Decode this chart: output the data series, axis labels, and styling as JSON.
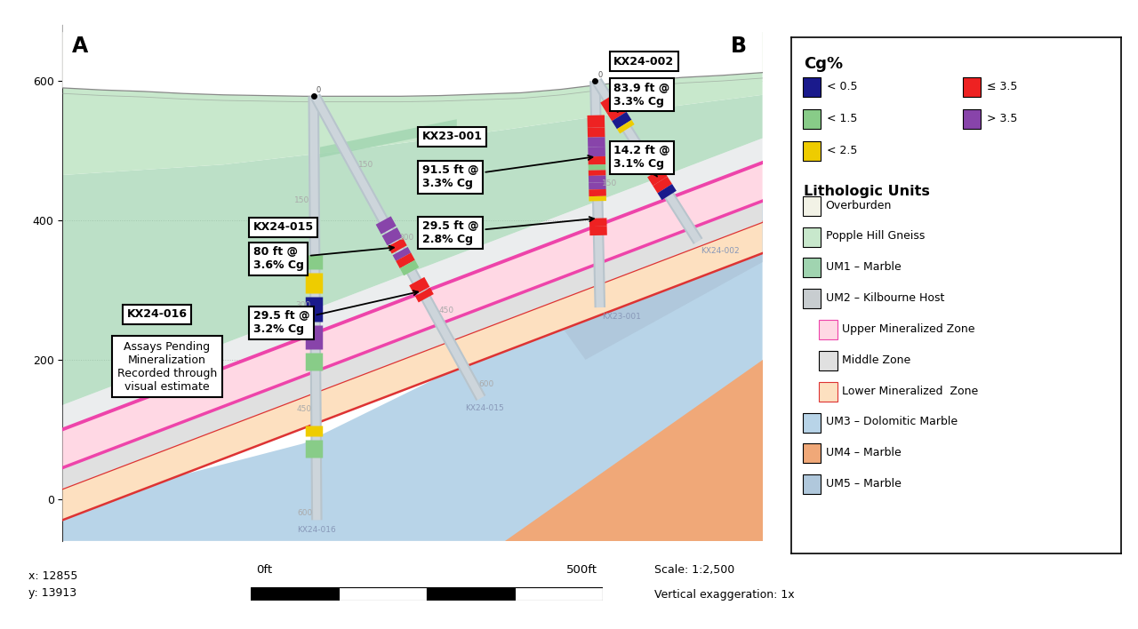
{
  "fig_width": 12.8,
  "fig_height": 7.08,
  "bg_color": "#ffffff",
  "plot_xlim": [
    0,
    870
  ],
  "plot_ylim": [
    -60,
    680
  ],
  "yticks": [
    0,
    200,
    400,
    600
  ],
  "scale_text": "Scale: 1:2,500",
  "vert_exag": "Vertical exaggeration: 1x",
  "coord_x": "x: 12855",
  "coord_y": "y: 13913",
  "colors": {
    "overburden": "#f2f2e6",
    "popple_hill": "#c8e8cc",
    "um1_marble": "#a0d4b0",
    "um2_kilbourne": "#c8cdd0",
    "upper_min_zone": "#ffc8d8",
    "upper_min_zone_fill": "#ffd8e4",
    "middle_zone": "#e0e0e0",
    "lower_min_zone": "#fde0c0",
    "um3_dolomitic": "#b8d4e8",
    "um4_marble": "#f0a878",
    "um5_marble": "#b0c8dc",
    "pink_border": "#ee44aa",
    "red_border": "#dd3333",
    "hole_gray": "#b8c4cc",
    "hole_outline": "#8090a0",
    "cg_blue": "#1a1a8c",
    "cg_green": "#88cc88",
    "cg_yellow": "#eecc00",
    "cg_red": "#ee2222",
    "cg_purple": "#8844aa",
    "topo_line": "#888888",
    "grid_line": "#aaaaaa",
    "depth_label": "#aaaaaa",
    "hole_label": "#8898b8"
  },
  "topo_x": [
    0,
    50,
    100,
    150,
    200,
    250,
    300,
    310,
    320,
    370,
    420,
    470,
    520,
    570,
    620,
    670,
    720,
    770,
    820,
    870
  ],
  "topo_y": [
    590,
    587,
    585,
    582,
    580,
    579,
    578,
    578,
    578,
    578,
    578,
    579,
    581,
    583,
    588,
    595,
    600,
    605,
    608,
    612
  ]
}
